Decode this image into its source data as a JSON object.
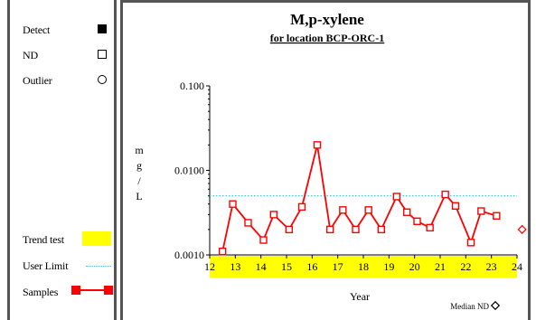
{
  "legend": {
    "detect_label": "Detect",
    "nd_label": "ND",
    "outlier_label": "Outlier",
    "trend_test_label": "Trend test",
    "user_limit_label": "User Limit",
    "samples_label": "Samples"
  },
  "colors": {
    "series": "#ff0000",
    "trend_band": "#ffff00",
    "user_limit": "#33ccee",
    "frame": "#555555"
  },
  "chart_data": {
    "type": "line",
    "title": "M,p-xylene",
    "subtitle": "for location BCP-ORC-1",
    "xlabel": "Year",
    "ylabel": "mg/L",
    "ylabel_chars": [
      "m",
      "g",
      "/",
      "L"
    ],
    "y_scale": "log",
    "ylim": [
      0.001,
      0.1
    ],
    "xlim": [
      12,
      24
    ],
    "y_ticks": [
      {
        "value": 0.1,
        "label": "0.100"
      },
      {
        "value": 0.01,
        "label": "0.0100"
      },
      {
        "value": 0.001,
        "label": "0.0010"
      }
    ],
    "x_ticks": [
      "12",
      "13",
      "14",
      "15",
      "16",
      "17",
      "18",
      "19",
      "20",
      "21",
      "22",
      "23",
      "24"
    ],
    "user_limit": 0.005,
    "trend_test_range": [
      12,
      24
    ],
    "series": [
      {
        "marker": "open-square",
        "x": [
          12.5,
          12.9,
          13.5,
          14.1,
          14.5,
          15.1,
          15.6,
          16.2,
          16.7,
          17.2,
          17.7,
          18.2,
          18.7,
          19.3,
          19.7,
          20.1,
          20.6,
          21.2,
          21.6,
          22.2,
          22.6,
          23.2
        ],
        "y": [
          0.0011,
          0.004,
          0.0024,
          0.0015,
          0.003,
          0.002,
          0.0037,
          0.02,
          0.002,
          0.0034,
          0.002,
          0.0034,
          0.002,
          0.0049,
          0.0032,
          0.0025,
          0.0021,
          0.0052,
          0.0038,
          0.0014,
          0.0033,
          0.0029
        ]
      }
    ],
    "median_nd": {
      "x": 24.2,
      "y": 0.002
    },
    "median_nd_label": "Median ND"
  }
}
